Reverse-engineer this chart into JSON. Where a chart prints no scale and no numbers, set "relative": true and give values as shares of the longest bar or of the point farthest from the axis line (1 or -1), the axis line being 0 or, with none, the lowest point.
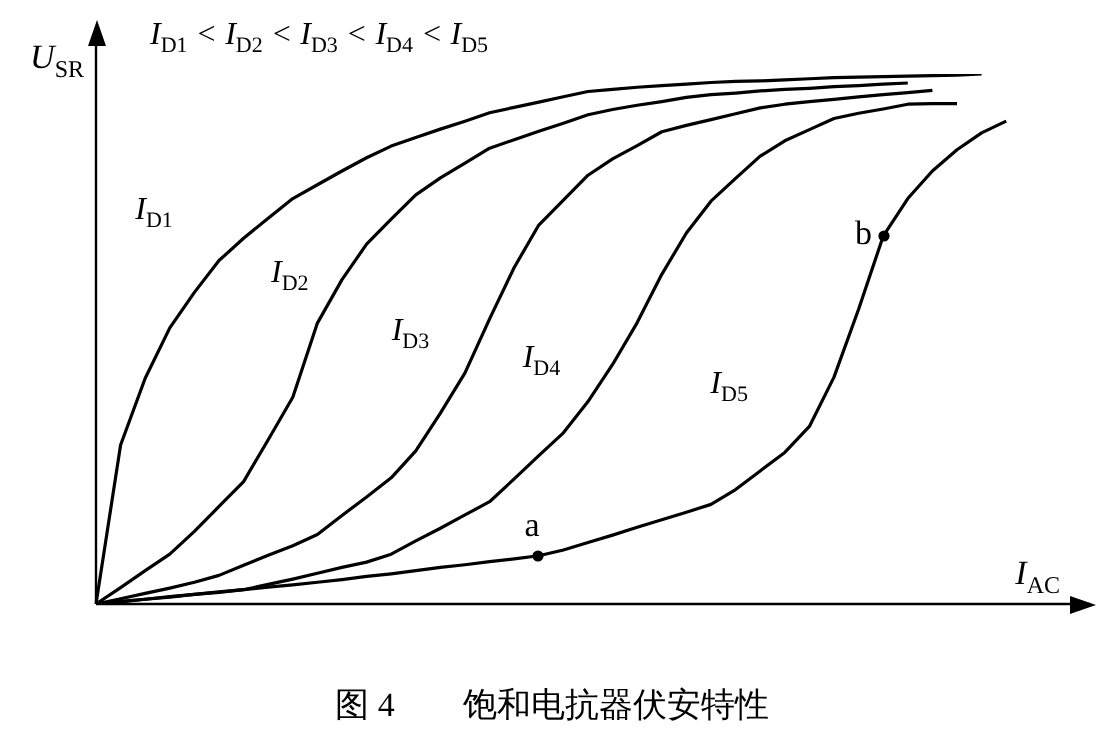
{
  "chart_data": {
    "type": "line",
    "relative": true,
    "xlabel": "I$_{AC}$",
    "ylabel": "U$_{SR}$",
    "grid": false,
    "legend": false,
    "marker": "none",
    "line_style": "solid",
    "categories": [
      null,
      null,
      null,
      null,
      null,
      null,
      null,
      null,
      null,
      null,
      null,
      null,
      null,
      null,
      null,
      null,
      null,
      null,
      null,
      null,
      null,
      null,
      null,
      null,
      null,
      null,
      null,
      null,
      null,
      null,
      null,
      null,
      null,
      null,
      null,
      null,
      null,
      null,
      null,
      null,
      null
    ],
    "series": [
      {
        "name": "I$_{D1}$",
        "color": "#000000",
        "values": [
          0,
          0.3,
          0.426,
          0.521,
          0.588,
          0.648,
          0.69,
          0.728,
          0.765,
          0.791,
          0.817,
          0.842,
          0.864,
          0.88,
          0.896,
          0.911,
          0.927,
          0.937,
          0.947,
          0.957,
          0.967,
          0.971,
          0.975,
          0.978,
          0.981,
          0.984,
          0.986,
          0.987,
          0.989,
          0.991,
          0.993,
          0.994,
          0.995,
          0.996,
          0.997,
          0.998,
          1.0,
          null,
          null,
          null,
          null
        ]
      },
      {
        "name": "I$_{D2}$",
        "color": "#000000",
        "values": [
          0,
          0.031,
          0.063,
          0.094,
          0.137,
          0.184,
          0.231,
          0.31,
          0.39,
          0.53,
          0.612,
          0.679,
          0.726,
          0.772,
          0.804,
          0.832,
          0.86,
          0.876,
          0.892,
          0.907,
          0.923,
          0.933,
          0.941,
          0.948,
          0.956,
          0.961,
          0.964,
          0.968,
          0.971,
          0.973,
          0.976,
          0.978,
          0.981,
          0.983,
          null,
          null,
          null,
          null,
          null,
          null,
          null
        ]
      },
      {
        "name": "I$_{D3}$",
        "color": "#000000",
        "values": [
          0,
          0.01,
          0.02,
          0.03,
          0.041,
          0.054,
          0.073,
          0.092,
          0.11,
          0.131,
          0.167,
          0.202,
          0.238,
          0.289,
          0.36,
          0.436,
          0.538,
          0.635,
          0.715,
          0.762,
          0.809,
          0.84,
          0.865,
          0.891,
          0.903,
          0.914,
          0.925,
          0.936,
          0.943,
          0.948,
          0.952,
          0.957,
          0.961,
          0.965,
          0.969,
          null,
          null,
          null,
          null,
          null,
          null
        ]
      },
      {
        "name": "I$_{D4}$",
        "color": "#000000",
        "values": [
          0,
          0.004,
          0.009,
          0.013,
          0.018,
          0.022,
          0.027,
          0.037,
          0.047,
          0.058,
          0.069,
          0.079,
          0.094,
          0.119,
          0.143,
          0.168,
          0.193,
          0.236,
          0.28,
          0.323,
          0.382,
          0.452,
          0.531,
          0.622,
          0.7,
          0.76,
          0.803,
          0.845,
          0.874,
          0.895,
          0.916,
          0.926,
          0.934,
          0.943,
          0.944,
          0.944,
          null,
          null,
          null,
          null,
          null
        ]
      },
      {
        "name": "I$_{D5}$",
        "color": "#000000",
        "values": [
          0,
          0.005,
          0.009,
          0.014,
          0.018,
          0.023,
          0.027,
          0.032,
          0.036,
          0.041,
          0.046,
          0.052,
          0.057,
          0.063,
          0.069,
          0.074,
          0.08,
          0.085,
          0.091,
          0.102,
          0.116,
          0.13,
          0.145,
          0.159,
          0.173,
          0.188,
          0.216,
          0.251,
          0.286,
          0.335,
          0.428,
          0.556,
          0.694,
          0.765,
          0.817,
          0.857,
          0.889,
          0.911,
          null,
          null,
          null
        ]
      }
    ],
    "annotations": [
      "I$_{D1}$ < I$_{D2}$ < I$_{D3}$ < I$_{D4}$ < I$_{D5}$",
      "a",
      "b",
      "图 4　　饱和电抗器伏安特性"
    ]
  }
}
